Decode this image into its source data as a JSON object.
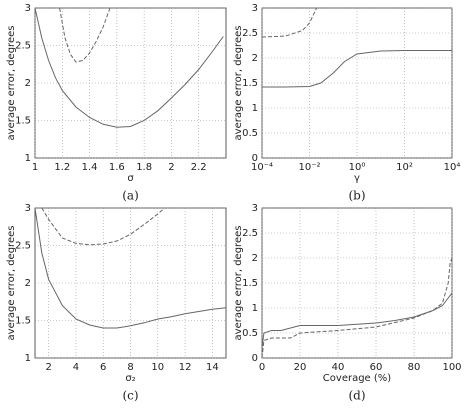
{
  "chart_data": [
    {
      "type": "line",
      "caption": "(a)",
      "xlabel": "σ",
      "ylabel": "average error, degrees",
      "xlim": [
        1,
        2.4
      ],
      "xticks": [
        1,
        1.2,
        1.4,
        1.6,
        1.8,
        2,
        2.2
      ],
      "ylim": [
        1,
        3
      ],
      "yticks": [
        1,
        1.5,
        2,
        2.5,
        3
      ],
      "grid": true,
      "series": [
        {
          "color": "#666666",
          "dashed": false,
          "x": [
            1.0,
            1.05,
            1.1,
            1.15,
            1.2,
            1.3,
            1.4,
            1.5,
            1.6,
            1.7,
            1.8,
            1.9,
            2.0,
            2.1,
            2.2,
            2.3,
            2.38
          ],
          "values": [
            3.0,
            2.6,
            2.3,
            2.07,
            1.9,
            1.68,
            1.54,
            1.45,
            1.41,
            1.42,
            1.5,
            1.63,
            1.8,
            1.98,
            2.18,
            2.42,
            2.62
          ]
        },
        {
          "color": "#666666",
          "dashed": true,
          "x": [
            1.18,
            1.22,
            1.26,
            1.3,
            1.35,
            1.4,
            1.45,
            1.5,
            1.55
          ],
          "values": [
            3.0,
            2.6,
            2.38,
            2.28,
            2.3,
            2.4,
            2.56,
            2.75,
            3.0
          ]
        }
      ]
    },
    {
      "type": "line",
      "caption": "(b)",
      "xlabel": "γ",
      "ylabel": "average error, degrees",
      "log_x": true,
      "xlim": [
        0.0001,
        10000
      ],
      "xticks": [
        {
          "value": 0.0001,
          "label": "10⁻⁴"
        },
        {
          "value": 0.01,
          "label": "10⁻²"
        },
        {
          "value": 1,
          "label": "10⁰"
        },
        {
          "value": 100,
          "label": "10²"
        },
        {
          "value": 10000,
          "label": "10⁴"
        }
      ],
      "ylim": [
        0,
        3
      ],
      "yticks": [
        0,
        0.5,
        1,
        1.5,
        2,
        2.5,
        3
      ],
      "grid": true,
      "series": [
        {
          "color": "#666666",
          "dashed": false,
          "x": [
            0.0001,
            0.001,
            0.01,
            0.03,
            0.1,
            0.3,
            1,
            10,
            100,
            10000
          ],
          "values": [
            1.42,
            1.42,
            1.43,
            1.5,
            1.7,
            1.93,
            2.08,
            2.14,
            2.15,
            2.15
          ]
        },
        {
          "color": "#666666",
          "dashed": true,
          "x": [
            0.0001,
            0.001,
            0.005,
            0.01,
            0.02
          ],
          "values": [
            2.42,
            2.44,
            2.55,
            2.7,
            3.0
          ]
        }
      ]
    },
    {
      "type": "line",
      "caption": "(c)",
      "xlabel": "σ₂",
      "ylabel": "average error, degrees",
      "xlim": [
        1,
        15
      ],
      "xticks": [
        2,
        4,
        6,
        8,
        10,
        12,
        14
      ],
      "ylim": [
        1,
        3
      ],
      "yticks": [
        1,
        1.5,
        2,
        2.5,
        3
      ],
      "grid": true,
      "series": [
        {
          "color": "#666666",
          "dashed": false,
          "x": [
            1,
            1.5,
            2,
            3,
            4,
            5,
            6,
            7,
            8,
            9,
            10,
            11,
            12,
            13,
            14,
            15
          ],
          "values": [
            3.0,
            2.4,
            2.05,
            1.7,
            1.52,
            1.44,
            1.4,
            1.4,
            1.43,
            1.47,
            1.52,
            1.55,
            1.59,
            1.62,
            1.65,
            1.67
          ]
        },
        {
          "color": "#666666",
          "dashed": true,
          "x": [
            1.5,
            2,
            3,
            4,
            5,
            6,
            7,
            8,
            9,
            10,
            10.5
          ],
          "values": [
            3.0,
            2.85,
            2.6,
            2.53,
            2.51,
            2.52,
            2.56,
            2.65,
            2.78,
            2.92,
            3.0
          ]
        }
      ]
    },
    {
      "type": "line",
      "caption": "(d)",
      "xlabel": "Coverage (%)",
      "ylabel": "average error, degrees",
      "xlim": [
        0,
        100
      ],
      "xticks": [
        0,
        20,
        40,
        60,
        80,
        100
      ],
      "ylim": [
        0,
        3
      ],
      "yticks": [
        0,
        0.5,
        1,
        1.5,
        2,
        2.5,
        3
      ],
      "grid": true,
      "series": [
        {
          "color": "#666666",
          "dashed": false,
          "x": [
            0,
            1,
            5,
            10,
            15,
            20,
            40,
            60,
            70,
            80,
            90,
            95,
            98,
            100
          ],
          "values": [
            0.2,
            0.5,
            0.55,
            0.55,
            0.6,
            0.65,
            0.65,
            0.7,
            0.75,
            0.82,
            0.95,
            1.05,
            1.2,
            1.3
          ]
        },
        {
          "color": "#666666",
          "dashed": true,
          "x": [
            0,
            1,
            5,
            15,
            20,
            40,
            60,
            80,
            90,
            95,
            98,
            99,
            100
          ],
          "values": [
            0,
            0.35,
            0.4,
            0.4,
            0.5,
            0.55,
            0.62,
            0.8,
            0.95,
            1.1,
            1.5,
            1.9,
            2.0
          ]
        }
      ]
    }
  ]
}
